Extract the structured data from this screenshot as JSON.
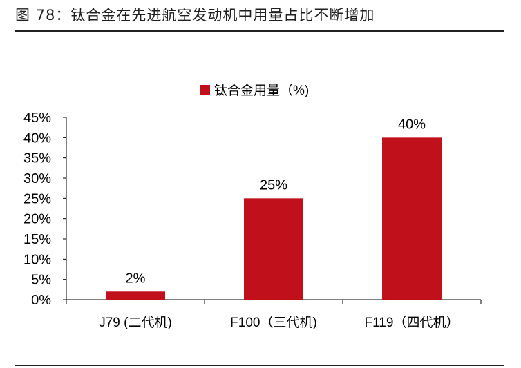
{
  "figure": {
    "title": "图 78：钛合金在先进航空发动机中用量占比不断增加"
  },
  "chart_data": {
    "type": "bar",
    "categories": [
      "J79 (二代机)",
      "F100（三代机)",
      "F119（四代机）"
    ],
    "series": [
      {
        "name": "钛合金用量（%)",
        "values": [
          2,
          25,
          40
        ],
        "value_labels": [
          "2%",
          "25%",
          "40%"
        ],
        "color": "#c0101c"
      }
    ],
    "ylim": [
      0,
      45
    ],
    "yticks": [
      "0%",
      "5%",
      "10%",
      "15%",
      "20%",
      "25%",
      "30%",
      "35%",
      "40%",
      "45%"
    ],
    "ytick_values": [
      0,
      5,
      10,
      15,
      20,
      25,
      30,
      35,
      40,
      45
    ],
    "grid": false,
    "legend_position": "top-center"
  }
}
